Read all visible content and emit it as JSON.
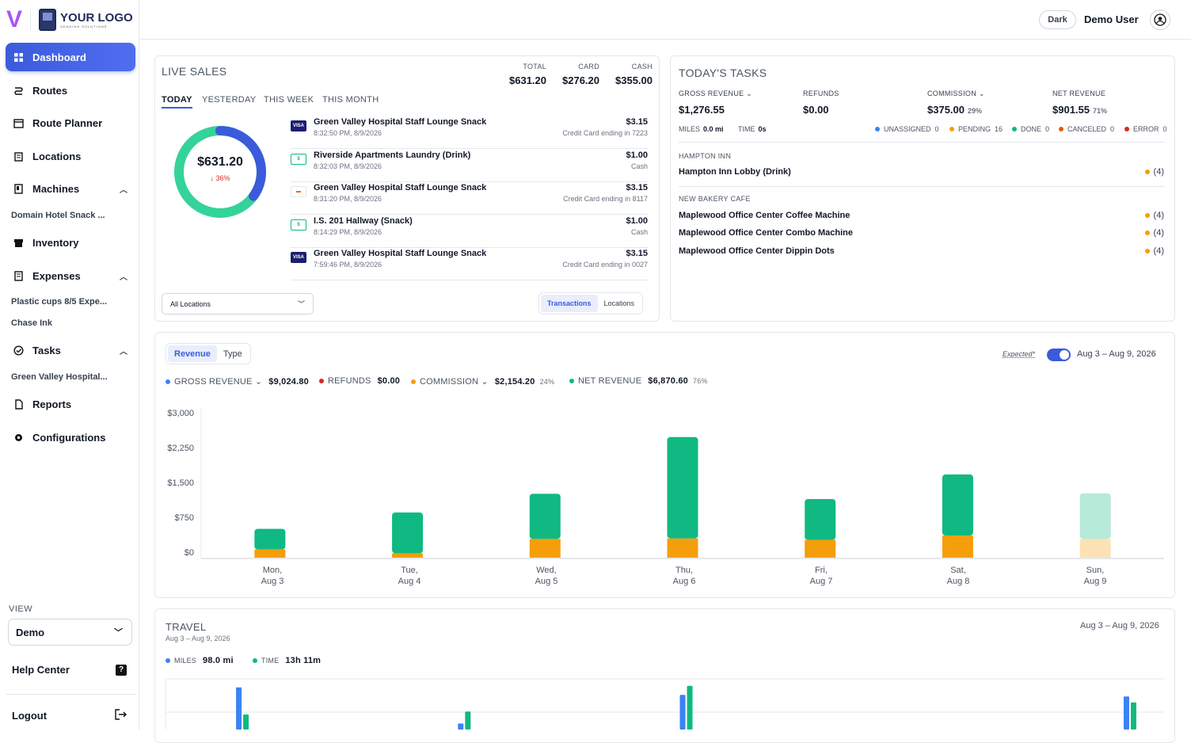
{
  "brand": {
    "mark": "V",
    "logo_text": "YOUR LOGO",
    "logo_sub": "VENDING SOLUTIONS"
  },
  "sidebar": {
    "items": [
      {
        "label": "Dashboard",
        "icon": "grid-icon"
      },
      {
        "label": "Routes",
        "icon": "route-icon"
      },
      {
        "label": "Route Planner",
        "icon": "calendar-icon"
      },
      {
        "label": "Locations",
        "icon": "building-icon"
      },
      {
        "label": "Machines",
        "icon": "vending-machine-icon"
      },
      {
        "label": "Inventory",
        "icon": "box-icon"
      },
      {
        "label": "Expenses",
        "icon": "receipt-icon"
      },
      {
        "label": "Tasks",
        "icon": "check-circle-icon"
      },
      {
        "label": "Reports",
        "icon": "document-icon"
      },
      {
        "label": "Configurations",
        "icon": "gear-icon"
      }
    ],
    "sub": {
      "machines": "Domain Hotel Snack ...",
      "expenses_1": "Plastic cups 8/5 Expe...",
      "expenses_2": "Chase Ink",
      "tasks": "Green Valley Hospital..."
    },
    "view_label": "VIEW",
    "view_value": "Demo",
    "help": "Help Center",
    "logout": "Logout"
  },
  "topbar": {
    "theme_button": "Dark",
    "user": "Demo User"
  },
  "live_sales": {
    "title": "LIVE SALES",
    "totals": [
      {
        "label": "TOTAL",
        "value": "$631.20"
      },
      {
        "label": "CARD",
        "value": "$276.20"
      },
      {
        "label": "CASH",
        "value": "$355.00"
      }
    ],
    "tabs": [
      "TODAY",
      "YESTERDAY",
      "THIS WEEK",
      "THIS MONTH"
    ],
    "donut": {
      "value": "$631.20",
      "change": "↓ 36%",
      "fraction": 0.35
    },
    "transactions": [
      {
        "name": "Green Valley Hospital Staff Lounge Snack",
        "time": "8:32:50 PM, 8/9/2026",
        "amount": "$3.15",
        "method": "Credit Card ending in 7223",
        "icon": "visa"
      },
      {
        "name": "Riverside Apartments Laundry (Drink)",
        "time": "8:32:03 PM, 8/9/2026",
        "amount": "$1.00",
        "method": "Cash",
        "icon": "cash"
      },
      {
        "name": "Green Valley Hospital Staff Lounge Snack",
        "time": "8:31:20 PM, 8/9/2026",
        "amount": "$3.15",
        "method": "Credit Card ending in 8117",
        "icon": "other"
      },
      {
        "name": "I.S. 201 Hallway (Snack)",
        "time": "8:14:29 PM, 8/9/2026",
        "amount": "$1.00",
        "method": "Cash",
        "icon": "cash"
      },
      {
        "name": "Green Valley Hospital Staff Lounge Snack",
        "time": "7:59:46 PM, 8/9/2026",
        "amount": "$3.15",
        "method": "Credit Card ending in 0027",
        "icon": "visa"
      }
    ],
    "location_filter": "All Locations",
    "toggle": [
      "Transactions",
      "Locations"
    ]
  },
  "tasks": {
    "title": "TODAY'S TASKS",
    "kpis": [
      {
        "label": "GROSS REVENUE",
        "value": "$1,276.55",
        "pct": ""
      },
      {
        "label": "REFUNDS",
        "value": "$0.00",
        "pct": ""
      },
      {
        "label": "COMMISSION",
        "value": "$375.00",
        "pct": "29%"
      },
      {
        "label": "NET REVENUE",
        "value": "$901.55",
        "pct": "71%"
      }
    ],
    "miles_label": "MILES",
    "miles": "0.0 mi",
    "time_label": "TIME",
    "time": "0s",
    "statuses": [
      {
        "label": "UNASSIGNED",
        "count": "0",
        "color": "#3b82f6"
      },
      {
        "label": "PENDING",
        "count": "16",
        "color": "#f59e0b"
      },
      {
        "label": "DONE",
        "count": "0",
        "color": "#10b981"
      },
      {
        "label": "CANCELED",
        "count": "0",
        "color": "#ea580c"
      },
      {
        "label": "ERROR",
        "count": "0",
        "color": "#dc2626"
      }
    ],
    "groups": [
      {
        "name": "HAMPTON INN",
        "items": [
          {
            "name": "Hampton Inn Lobby (Drink)",
            "count": "(4)"
          }
        ]
      },
      {
        "name": "NEW BAKERY CAFE",
        "items": [
          {
            "name": "Maplewood Office Center Coffee Machine",
            "count": "(4)"
          },
          {
            "name": "Maplewood Office Center Combo Machine",
            "count": "(4)"
          },
          {
            "name": "Maplewood Office Center Dippin Dots",
            "count": "(4)"
          }
        ]
      }
    ]
  },
  "revenue": {
    "tabs": [
      "Revenue",
      "Type"
    ],
    "expected_label": "Expected*",
    "date_range": "Aug 3 – Aug 9, 2026",
    "legend": [
      {
        "label": "GROSS REVENUE",
        "value": "$9,024.80",
        "pct": "",
        "color": "#3b82f6"
      },
      {
        "label": "REFUNDS",
        "value": "$0.00",
        "pct": "",
        "color": "#dc2626"
      },
      {
        "label": "COMMISSION",
        "value": "$2,154.20",
        "pct": "24%",
        "color": "#f59e0b"
      },
      {
        "label": "NET REVENUE",
        "value": "$6,870.60",
        "pct": "76%",
        "color": "#10b981"
      }
    ]
  },
  "chart_data": [
    {
      "type": "bar",
      "stacked": true,
      "categories": [
        "Mon, Aug 3",
        "Tue, Aug 4",
        "Wed, Aug 5",
        "Thu, Aug 6",
        "Fri, Aug 7",
        "Sat, Aug 8",
        "Sun, Aug 9"
      ],
      "category_lines": [
        [
          "Mon,",
          "Aug 3"
        ],
        [
          "Tue,",
          "Aug 4"
        ],
        [
          "Wed,",
          "Aug 5"
        ],
        [
          "Thu,",
          "Aug 6"
        ],
        [
          "Fri,",
          "Aug 7"
        ],
        [
          "Sat,",
          "Aug 8"
        ],
        [
          "Sun,",
          "Aug 9"
        ]
      ],
      "series": [
        {
          "name": "COMMISSION",
          "values": [
            170,
            90,
            390,
            400,
            370,
            460,
            390
          ],
          "color": "#f59e0b"
        },
        {
          "name": "NET REVENUE",
          "values": [
            430,
            850,
            940,
            2110,
            850,
            1270,
            950
          ],
          "color": "#10b981"
        }
      ],
      "expected_index": 6,
      "yticks": [
        "$0",
        "$750",
        "$1,500",
        "$2,250",
        "$3,000"
      ],
      "ylim": [
        0,
        3000
      ]
    },
    {
      "type": "bar",
      "title": "TRAVEL",
      "subtitle": "Aug 3 – Aug 9, 2026",
      "date_range": "Aug 3 – Aug 9, 2026",
      "legend": [
        {
          "label": "MILES",
          "value": "98.0 mi",
          "color": "#3b82f6"
        },
        {
          "label": "TIME",
          "value": "13h 11m",
          "color": "#10b981"
        }
      ],
      "series": [
        {
          "name": "MILES",
          "values": [
            28,
            0,
            4,
            0,
            23,
            0,
            0,
            0,
            22
          ],
          "color": "#3b82f6"
        },
        {
          "name": "TIME",
          "values": [
            10,
            0,
            12,
            0,
            29,
            0,
            0,
            0,
            18
          ],
          "color": "#10b981"
        }
      ]
    }
  ]
}
